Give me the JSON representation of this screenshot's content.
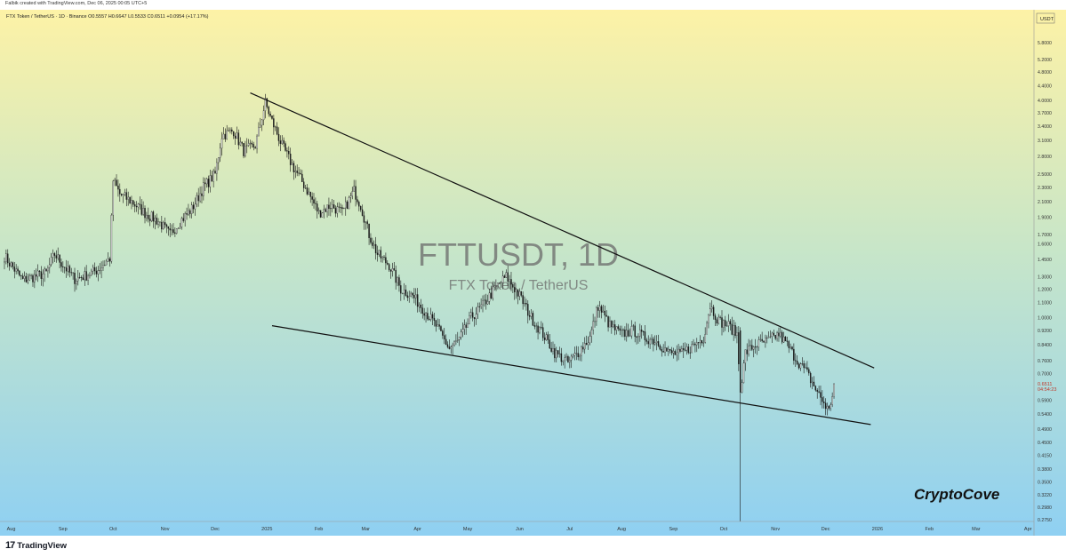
{
  "header": {
    "created_by": "Falbik created with TradingView.com, Dec 06, 2025 00:05 UTC+5"
  },
  "footer": {
    "logo_mark": "17",
    "logo_text": "TradingView"
  },
  "colors": {
    "bg_top": "#fdf2a6",
    "bg_bottom": "#8fd0f2",
    "bull": "#1a1a1a",
    "bear": "#1a1a1a",
    "trendline": "#111111",
    "price_marker": "#e06060"
  },
  "chart_data": {
    "type": "candlestick",
    "symbol_line": "FTX Token / TetherUS · 1D · Binance  O0.5557  H0.6647  L0.5533  C0.6511  +0.0954 (+17.17%)",
    "watermark_title": "FTTUSDT, 1D",
    "watermark_subtitle": "FTX Token / TetherUS",
    "brand_text": "CryptoCove",
    "y_axis": {
      "unit": "USDT",
      "scale": "log",
      "range": [
        0.275,
        6.6
      ],
      "ticks": [
        {
          "label": "5.8000",
          "v": 5.8
        },
        {
          "label": "5.2000",
          "v": 5.2
        },
        {
          "label": "4.8000",
          "v": 4.8
        },
        {
          "label": "4.4000",
          "v": 4.4
        },
        {
          "label": "4.0000",
          "v": 4.0
        },
        {
          "label": "3.7000",
          "v": 3.7
        },
        {
          "label": "3.4000",
          "v": 3.4
        },
        {
          "label": "3.1000",
          "v": 3.1
        },
        {
          "label": "2.8000",
          "v": 2.8
        },
        {
          "label": "2.5000",
          "v": 2.5
        },
        {
          "label": "2.3000",
          "v": 2.3
        },
        {
          "label": "2.1000",
          "v": 2.1
        },
        {
          "label": "1.9000",
          "v": 1.9
        },
        {
          "label": "1.7000",
          "v": 1.7
        },
        {
          "label": "1.6000",
          "v": 1.6
        },
        {
          "label": "1.4500",
          "v": 1.45
        },
        {
          "label": "1.3000",
          "v": 1.3
        },
        {
          "label": "1.2000",
          "v": 1.2
        },
        {
          "label": "1.1000",
          "v": 1.1
        },
        {
          "label": "1.0000",
          "v": 1.0
        },
        {
          "label": "0.9200",
          "v": 0.92
        },
        {
          "label": "0.8400",
          "v": 0.84
        },
        {
          "label": "0.7600",
          "v": 0.76
        },
        {
          "label": "0.7000",
          "v": 0.7
        },
        {
          "label": "0.5900",
          "v": 0.59
        },
        {
          "label": "0.5400",
          "v": 0.54
        },
        {
          "label": "0.4900",
          "v": 0.49
        },
        {
          "label": "0.4500",
          "v": 0.45
        },
        {
          "label": "0.4150",
          "v": 0.415
        },
        {
          "label": "0.3800",
          "v": 0.38
        },
        {
          "label": "0.3500",
          "v": 0.35
        },
        {
          "label": "0.3220",
          "v": 0.322
        },
        {
          "label": "0.2980",
          "v": 0.298
        },
        {
          "label": "0.2750",
          "v": 0.275
        }
      ],
      "last_price": {
        "label": "0.6511",
        "v": 0.6511,
        "countdown": "04:54:23"
      }
    },
    "x_axis": {
      "labels": [
        "Aug",
        "Sep",
        "Oct",
        "Nov",
        "Dec",
        "2025",
        "Feb",
        "Mar",
        "Apr",
        "May",
        "Jun",
        "Jul",
        "Aug",
        "Sep",
        "Oct",
        "Nov",
        "Dec",
        "2026",
        "Feb",
        "Mar",
        "Apr"
      ],
      "start": "2024-07-28",
      "end": "2026-04-03"
    },
    "price_path": [
      [
        "2024-07-28",
        1.48
      ],
      [
        "2024-08-03",
        1.36
      ],
      [
        "2024-08-08",
        1.27
      ],
      [
        "2024-08-15",
        1.3
      ],
      [
        "2024-08-22",
        1.33
      ],
      [
        "2024-08-27",
        1.5
      ],
      [
        "2024-09-01",
        1.4
      ],
      [
        "2024-09-08",
        1.28
      ],
      [
        "2024-09-15",
        1.31
      ],
      [
        "2024-09-22",
        1.36
      ],
      [
        "2024-09-29",
        1.46
      ],
      [
        "2024-10-01",
        2.4
      ],
      [
        "2024-10-05",
        2.2
      ],
      [
        "2024-10-12",
        2.1
      ],
      [
        "2024-10-20",
        1.95
      ],
      [
        "2024-10-28",
        1.85
      ],
      [
        "2024-11-04",
        1.7
      ],
      [
        "2024-11-10",
        1.85
      ],
      [
        "2024-11-17",
        2.0
      ],
      [
        "2024-11-24",
        2.3
      ],
      [
        "2024-12-01",
        2.5
      ],
      [
        "2024-12-05",
        3.2
      ],
      [
        "2024-12-12",
        3.3
      ],
      [
        "2024-12-18",
        2.9
      ],
      [
        "2024-12-25",
        3.0
      ],
      [
        "2024-12-31",
        3.95
      ],
      [
        "2025-01-03",
        3.6
      ],
      [
        "2025-01-10",
        3.0
      ],
      [
        "2025-01-17",
        2.6
      ],
      [
        "2025-01-24",
        2.3
      ],
      [
        "2025-02-01",
        1.95
      ],
      [
        "2025-02-08",
        2.05
      ],
      [
        "2025-02-15",
        1.95
      ],
      [
        "2025-02-22",
        2.25
      ],
      [
        "2025-02-26",
        2.05
      ],
      [
        "2025-03-03",
        1.7
      ],
      [
        "2025-03-08",
        1.5
      ],
      [
        "2025-03-15",
        1.4
      ],
      [
        "2025-03-22",
        1.2
      ],
      [
        "2025-03-29",
        1.15
      ],
      [
        "2025-04-05",
        1.05
      ],
      [
        "2025-04-12",
        0.95
      ],
      [
        "2025-04-20",
        0.82
      ],
      [
        "2025-04-26",
        0.87
      ],
      [
        "2025-05-03",
        1.0
      ],
      [
        "2025-05-10",
        1.08
      ],
      [
        "2025-05-17",
        1.2
      ],
      [
        "2025-05-24",
        1.3
      ],
      [
        "2025-06-01",
        1.15
      ],
      [
        "2025-06-08",
        1.0
      ],
      [
        "2025-06-15",
        0.9
      ],
      [
        "2025-06-22",
        0.8
      ],
      [
        "2025-06-30",
        0.75
      ],
      [
        "2025-07-06",
        0.8
      ],
      [
        "2025-07-13",
        0.88
      ],
      [
        "2025-07-18",
        1.08
      ],
      [
        "2025-07-25",
        0.95
      ],
      [
        "2025-08-01",
        0.9
      ],
      [
        "2025-08-08",
        0.92
      ],
      [
        "2025-08-15",
        0.88
      ],
      [
        "2025-08-22",
        0.86
      ],
      [
        "2025-08-29",
        0.8
      ],
      [
        "2025-09-05",
        0.79
      ],
      [
        "2025-09-12",
        0.83
      ],
      [
        "2025-09-19",
        0.88
      ],
      [
        "2025-09-23",
        1.08
      ],
      [
        "2025-09-28",
        0.98
      ],
      [
        "2025-10-04",
        0.95
      ],
      [
        "2025-10-09",
        0.9
      ],
      [
        "2025-10-11",
        0.62
      ],
      [
        "2025-10-14",
        0.8
      ],
      [
        "2025-10-20",
        0.84
      ],
      [
        "2025-10-27",
        0.86
      ],
      [
        "2025-11-03",
        0.9
      ],
      [
        "2025-11-08",
        0.84
      ],
      [
        "2025-11-14",
        0.76
      ],
      [
        "2025-11-20",
        0.7
      ],
      [
        "2025-11-27",
        0.61
      ],
      [
        "2025-12-03",
        0.55
      ],
      [
        "2025-12-06",
        0.65
      ]
    ],
    "special_candles": [
      {
        "date": "2025-10-11",
        "open": 0.92,
        "high": 0.94,
        "low": 0.25,
        "close": 0.62
      }
    ],
    "trendlines": [
      {
        "name": "upper",
        "from": [
          "2024-12-22",
          4.2
        ],
        "to": [
          "2025-12-30",
          0.725
        ]
      },
      {
        "name": "lower",
        "from": [
          "2025-01-04",
          0.95
        ],
        "to": [
          "2025-12-28",
          0.505
        ]
      }
    ]
  }
}
